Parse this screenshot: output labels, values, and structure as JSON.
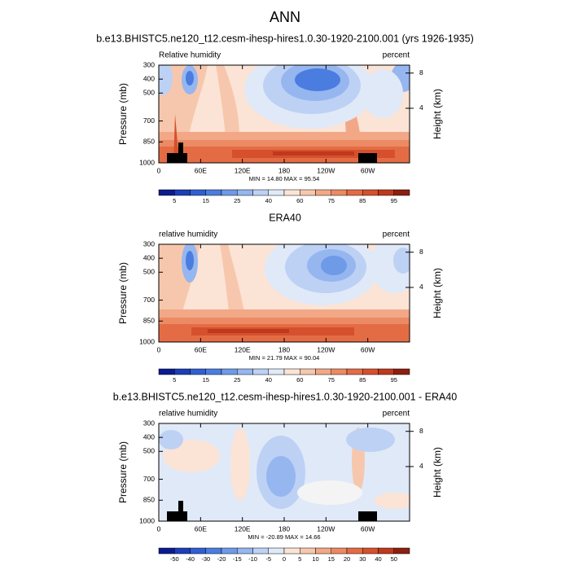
{
  "title": "ANN",
  "panels": [
    {
      "title": "b.e13.BHISTC5.ne120_t12.cesm-ihesp-hires1.0.30-1920-2100.001 (yrs 1926-1935)",
      "left_label": "Relative humidity",
      "right_label": "percent",
      "stats": "MIN = 14.80  MAX = 95.54",
      "y_label": "Pressure (mb)",
      "y2_label": "Height (km)",
      "xlim": [
        0,
        360
      ],
      "xticks": [
        0,
        {
          "value": 60,
          "label": "60E"
        },
        {
          "value": 120,
          "label": "120E"
        },
        180,
        {
          "value": 240,
          "label": "120W"
        },
        {
          "value": 300,
          "label": "60W"
        }
      ],
      "ylim": [
        1000,
        300
      ],
      "yticks": [
        300,
        400,
        500,
        700,
        850,
        1000
      ],
      "y2lim": [
        -2.2,
        8.9
      ],
      "y2ticks": [
        4,
        8
      ],
      "colorbar": {
        "colors": [
          "#0b1b8f",
          "#1c3eb7",
          "#2f5fd2",
          "#4a7ddf",
          "#6e9ae8",
          "#96b6ef",
          "#bdd1f5",
          "#e0e9f8",
          "#fbe4d6",
          "#f7c7ad",
          "#f2a886",
          "#ec8a63",
          "#e46c45",
          "#d6502e",
          "#bf391d",
          "#8c1f0f"
        ],
        "labels": [
          5,
          15,
          25,
          40,
          60,
          75,
          85,
          95
        ]
      }
    },
    {
      "title": "ERA40",
      "left_label": "relative humidity",
      "right_label": "percent",
      "stats": "MIN = 21.79  MAX = 90.04",
      "y_label": "Pressure (mb)",
      "y2_label": "Height (km)",
      "xlim": [
        0,
        360
      ],
      "xticks": [
        0,
        {
          "value": 60,
          "label": "60E"
        },
        {
          "value": 120,
          "label": "120E"
        },
        180,
        {
          "value": 240,
          "label": "120W"
        },
        {
          "value": 300,
          "label": "60W"
        }
      ],
      "ylim": [
        1000,
        300
      ],
      "yticks": [
        300,
        400,
        500,
        700,
        850,
        1000
      ],
      "y2lim": [
        -2.2,
        8.9
      ],
      "y2ticks": [
        4,
        8
      ],
      "colorbar": {
        "colors": [
          "#0b1b8f",
          "#1c3eb7",
          "#2f5fd2",
          "#4a7ddf",
          "#6e9ae8",
          "#96b6ef",
          "#bdd1f5",
          "#e0e9f8",
          "#fbe4d6",
          "#f7c7ad",
          "#f2a886",
          "#ec8a63",
          "#e46c45",
          "#d6502e",
          "#bf391d",
          "#8c1f0f"
        ],
        "labels": [
          5,
          15,
          25,
          40,
          60,
          75,
          85,
          95
        ]
      }
    },
    {
      "title": "b.e13.BHISTC5.ne120_t12.cesm-ihesp-hires1.0.30-1920-2100.001 - ERA40",
      "left_label": "relative humidity",
      "right_label": "percent",
      "stats": "MIN = -20.89  MAX = 14.66",
      "y_label": "Pressure (mb)",
      "y2_label": "Height (km)",
      "xlim": [
        0,
        360
      ],
      "xticks": [
        0,
        {
          "value": 60,
          "label": "60E"
        },
        {
          "value": 120,
          "label": "120E"
        },
        180,
        {
          "value": 240,
          "label": "120W"
        },
        {
          "value": 300,
          "label": "60W"
        }
      ],
      "ylim": [
        1000,
        300
      ],
      "yticks": [
        300,
        400,
        500,
        700,
        850,
        1000
      ],
      "y2lim": [
        -2.2,
        8.9
      ],
      "y2ticks": [
        4,
        8
      ],
      "colorbar": {
        "colors": [
          "#0b1b8f",
          "#1c3eb7",
          "#2f5fd2",
          "#4a7ddf",
          "#6e9ae8",
          "#96b6ef",
          "#bdd1f5",
          "#e0e9f8",
          "#fbe4d6",
          "#f7c7ad",
          "#f2a886",
          "#ec8a63",
          "#e46c45",
          "#d6502e",
          "#bf391d",
          "#8c1f0f"
        ],
        "labels": [
          -50,
          -40,
          -30,
          -20,
          -15,
          -10,
          -5,
          0,
          5,
          10,
          15,
          20,
          30,
          40,
          50
        ]
      }
    }
  ]
}
